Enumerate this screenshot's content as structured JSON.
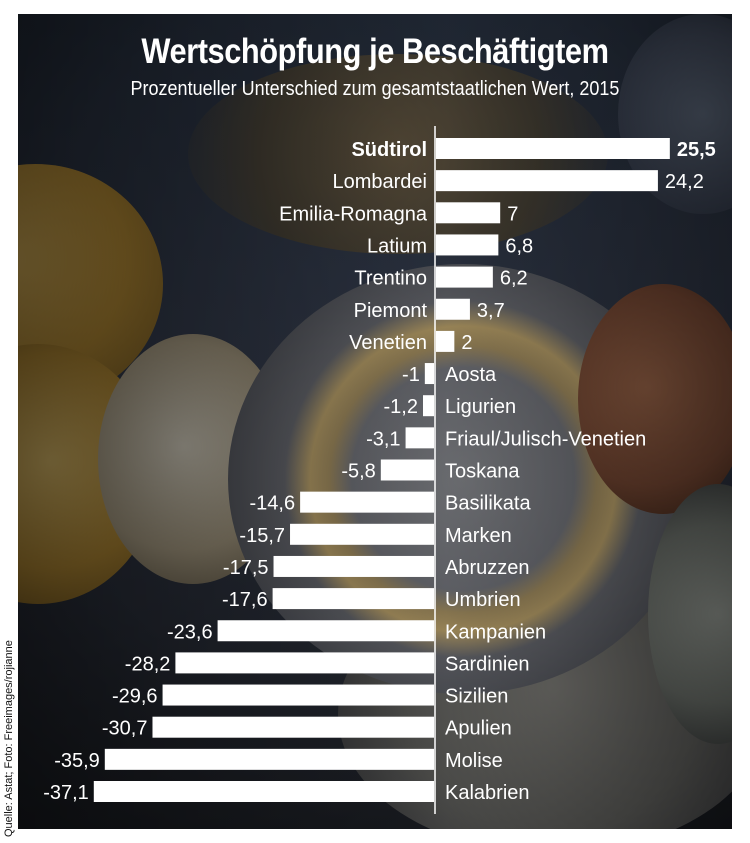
{
  "chart_data": {
    "type": "bar",
    "orientation": "horizontal",
    "title": "Wertschöpfung je Beschäftigtem",
    "subtitle": "Prozentueller Unterschied zum gesamtstaatlichen Wert, 2015",
    "categories": [
      "Südtirol",
      "Lombardei",
      "Emilia-Romagna",
      "Latium",
      "Trentino",
      "Piemont",
      "Venetien",
      "Aosta",
      "Ligurien",
      "Friaul/Julisch-Venetien",
      "Toskana",
      "Basilikata",
      "Marken",
      "Abruzzen",
      "Umbrien",
      "Kampanien",
      "Sardinien",
      "Sizilien",
      "Apulien",
      "Molise",
      "Kalabrien"
    ],
    "values": [
      25.5,
      24.2,
      7,
      6.8,
      6.2,
      3.7,
      2,
      -1,
      -1.2,
      -3.1,
      -5.8,
      -14.6,
      -15.7,
      -17.5,
      -17.6,
      -23.6,
      -28.2,
      -29.6,
      -30.7,
      -35.9,
      -37.1
    ],
    "value_labels": [
      "25,5",
      "24,2",
      "7",
      "6,8",
      "6,2",
      "3,7",
      "2",
      "-1",
      "-1,2",
      "-3,1",
      "-5,8",
      "-14,6",
      "-15,7",
      "-17,5",
      "-17,6",
      "-23,6",
      "-28,2",
      "-29,6",
      "-30,7",
      "-35,9",
      "-37,1"
    ],
    "highlight": "Südtirol",
    "bar_color": "#ffffff",
    "grid": false,
    "legend": "none"
  },
  "source": "Quelle: Astat; Foto: Freeimages/rojianne"
}
